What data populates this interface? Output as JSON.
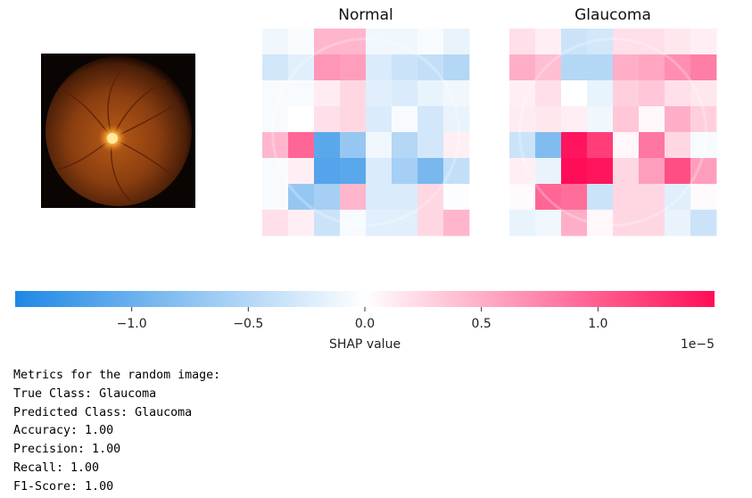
{
  "chart_data": {
    "type": "heatmap",
    "panels": [
      {
        "title": "Normal",
        "grid": [
          [
            -0.1,
            -0.05,
            0.45,
            0.45,
            -0.1,
            -0.1,
            -0.05,
            -0.15
          ],
          [
            -0.3,
            -0.2,
            0.65,
            0.6,
            -0.25,
            -0.35,
            -0.4,
            -0.5
          ],
          [
            -0.05,
            -0.05,
            0.12,
            0.25,
            -0.2,
            -0.25,
            -0.15,
            -0.1
          ],
          [
            -0.05,
            0,
            0.2,
            0.25,
            -0.25,
            -0.05,
            -0.3,
            -0.15
          ],
          [
            0.45,
            0.95,
            -1.1,
            -0.7,
            -0.1,
            -0.5,
            -0.3,
            0.1
          ],
          [
            -0.05,
            0.1,
            -1.15,
            -1.1,
            -0.25,
            -0.6,
            -0.9,
            -0.4
          ],
          [
            -0.05,
            -0.7,
            -0.6,
            0.45,
            -0.25,
            -0.25,
            0.25,
            -0.03
          ],
          [
            0.2,
            0.1,
            -0.35,
            -0.05,
            -0.2,
            -0.2,
            0.25,
            0.45
          ]
        ]
      },
      {
        "title": "Glaucoma",
        "grid": [
          [
            0.2,
            0.1,
            -0.35,
            -0.3,
            0.2,
            0.2,
            0.15,
            0.1
          ],
          [
            0.5,
            0.4,
            -0.5,
            -0.5,
            0.5,
            0.55,
            0.7,
            0.8
          ],
          [
            0.1,
            0.2,
            0,
            -0.15,
            0.3,
            0.35,
            0.2,
            0.15
          ],
          [
            0.12,
            0.15,
            0.1,
            -0.1,
            0.35,
            0.05,
            0.5,
            0.3
          ],
          [
            -0.35,
            -0.85,
            1.45,
            1.2,
            0.05,
            0.85,
            0.25,
            -0.05
          ],
          [
            0.1,
            -0.15,
            1.55,
            1.45,
            0.25,
            0.6,
            1.1,
            0.6
          ],
          [
            0.03,
            0.95,
            0.9,
            -0.35,
            0.25,
            0.25,
            -0.2,
            0.03
          ],
          [
            -0.15,
            -0.1,
            0.5,
            0.05,
            0.25,
            0.25,
            -0.15,
            -0.35
          ]
        ]
      }
    ],
    "colorbar": {
      "label": "SHAP value",
      "scale_text": "1e−5",
      "range": [
        -1.5,
        1.5
      ],
      "ticks": [
        -1.0,
        -0.5,
        0.0,
        0.5,
        1.0
      ],
      "tick_labels": [
        "−1.0",
        "−0.5",
        "0.0",
        "0.5",
        "1.0"
      ],
      "colors": {
        "negative": "#1e88e5",
        "neutral": "#ffffff",
        "positive": "#ff0d57"
      }
    }
  },
  "metrics": {
    "heading": "Metrics for the random image:",
    "lines": [
      "True Class: Glaucoma",
      "Predicted Class: Glaucoma",
      "Accuracy: 1.00",
      "Precision: 1.00",
      "Recall: 1.00",
      "F1-Score: 1.00"
    ]
  }
}
